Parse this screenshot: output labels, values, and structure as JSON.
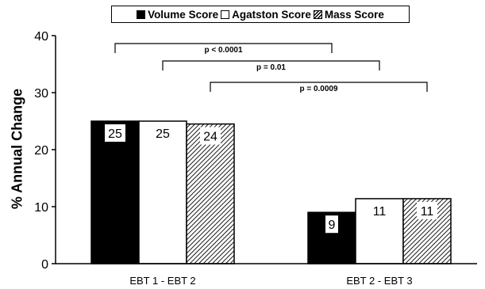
{
  "legend": {
    "volume": "Volume Score",
    "agatston": "Agatston Score",
    "mass": "Mass Score"
  },
  "chart_data": {
    "type": "bar",
    "title": "",
    "xlabel": "",
    "ylabel": "% Annual Change",
    "ylim": [
      0,
      40
    ],
    "yticks": [
      "0",
      "10",
      "20",
      "30",
      "40"
    ],
    "grid": false,
    "legend_position": "top",
    "categories": [
      "EBT 1 - EBT 2",
      "EBT 2 - EBT 3"
    ],
    "series": [
      {
        "name": "Volume Score",
        "fill": "solid",
        "color": "#000000",
        "values": [
          25,
          9
        ],
        "labels": [
          "25",
          "9"
        ]
      },
      {
        "name": "Agatston Score",
        "fill": "empty",
        "color": "#ffffff",
        "values": [
          25,
          11.4
        ],
        "labels": [
          "25",
          "11"
        ]
      },
      {
        "name": "Mass Score",
        "fill": "hatched",
        "color": "#000000",
        "values": [
          24.5,
          11.4
        ],
        "labels": [
          "24",
          "11"
        ]
      }
    ],
    "annotations": [
      {
        "text": "p < 0.0001",
        "from": "Volume Score, EBT 1 - EBT 2",
        "to": "Volume Score, EBT 2 - EBT 3"
      },
      {
        "text": "p = 0.01",
        "from": "Agatston Score, EBT 1 - EBT 2",
        "to": "Agatston Score, EBT 2 - EBT 3"
      },
      {
        "text": "p = 0.0009",
        "from": "Mass Score, EBT 1 - EBT 2",
        "to": "Mass Score, EBT 2 - EBT 3"
      }
    ]
  }
}
